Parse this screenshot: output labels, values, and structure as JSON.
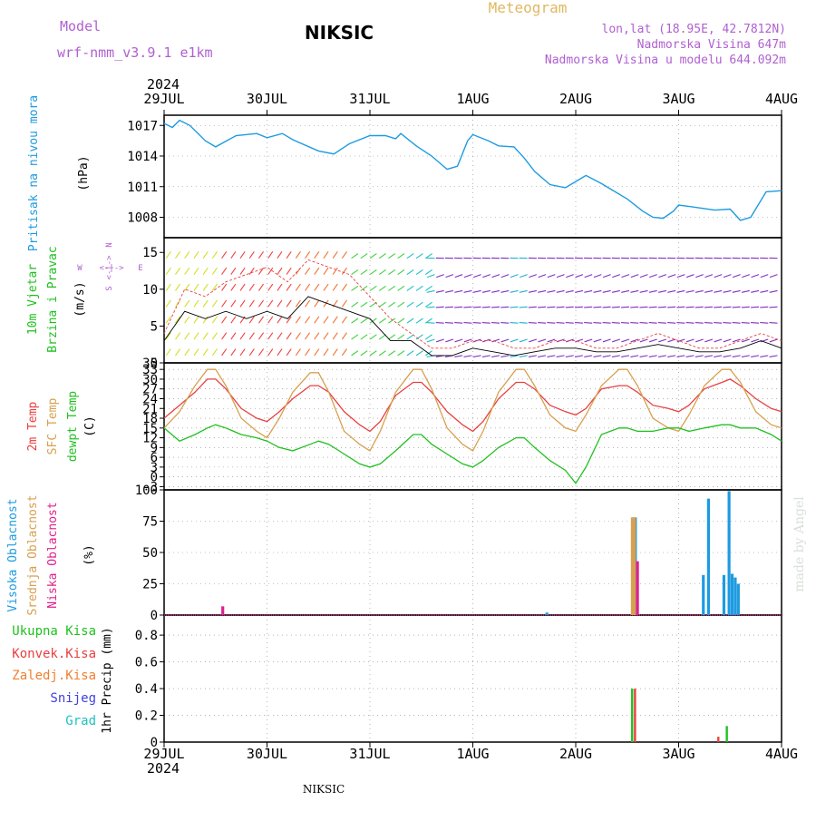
{
  "header": {
    "model_label": "Model",
    "model_name": "wrf-nmm_v3.9.1 e1km",
    "station": "NIKSIC",
    "product": "Meteogram",
    "coords": "lon,lat (18.95E, 42.7812N)",
    "elevation": "Nadmorska Visina 647m",
    "model_elevation": "Nadmorska Visina u modelu 644.092m"
  },
  "footer": {
    "station": "NIKSIC",
    "credit": "made by Angel"
  },
  "time_axis": {
    "year": "2024",
    "labels": [
      "29JUL",
      "30JUL",
      "31JUL",
      "1AUG",
      "2AUG",
      "3AUG",
      "4AUG"
    ]
  },
  "colors": {
    "pressure": "#1e9be0",
    "temp2m": "#e84040",
    "sfc_temp": "#d8a050",
    "dewpt": "#20c020",
    "cloud_high": "#1e9be0",
    "cloud_mid": "#d8a050",
    "cloud_low": "#e0208c",
    "rain_total": "#20c020",
    "rain_conv": "#e84040",
    "rain_frozen": "#f08030",
    "snow": "#4040e0",
    "hail": "#20c0c0"
  },
  "panel_labels": {
    "pressure": [
      "Pritisak na nivou mora",
      "(hPa)"
    ],
    "wind": [
      "10m Vjetar",
      "Brzina i Pravac",
      "(m/s)"
    ],
    "wind_compass": {
      "n": "N",
      "s": "S",
      "e": "E",
      "w": "W",
      "arrows": "<-|->"
    },
    "temp": [
      "2m Temp",
      "SFC Temp",
      "dewpt Temp",
      "(C)"
    ],
    "cloud": [
      "Visoka Oblacnost",
      "Srednja Oblacnost",
      "Niska Oblacnost",
      "(%)"
    ],
    "precip_side": "1hr Precip (mm)",
    "precip_legend": [
      "Ukupna Kisa",
      "Konvek.Kisa",
      "Zaledj.Kisa",
      "Snijeg",
      "Grad"
    ]
  },
  "chart_data": [
    {
      "type": "line",
      "name": "pressure",
      "xlabel": "",
      "ylabel": "(hPa)",
      "yticks": [
        "1008",
        "1011",
        "1014",
        "1017"
      ],
      "ylim": [
        1006,
        1018
      ],
      "x_days": [
        0,
        0.08,
        0.15,
        0.25,
        0.4,
        0.5,
        0.7,
        0.9,
        1.0,
        1.15,
        1.25,
        1.5,
        1.65,
        1.8,
        2.0,
        2.15,
        2.25,
        2.3,
        2.45,
        2.6,
        2.75,
        2.85,
        2.95,
        3.0,
        3.15,
        3.25,
        3.4,
        3.5,
        3.6,
        3.75,
        3.9,
        4.0,
        4.1,
        4.25,
        4.35,
        4.5,
        4.65,
        4.75,
        4.85,
        4.95,
        5.0,
        5.15,
        5.35,
        5.5,
        5.6,
        5.7,
        5.85,
        6.0
      ],
      "values": [
        1017.2,
        1016.8,
        1017.5,
        1017.0,
        1015.5,
        1014.9,
        1016.0,
        1016.2,
        1015.8,
        1016.2,
        1015.6,
        1014.5,
        1014.2,
        1015.2,
        1016.0,
        1016.0,
        1015.7,
        1016.2,
        1015.0,
        1014.0,
        1012.7,
        1013.0,
        1015.5,
        1016.1,
        1015.5,
        1015.0,
        1014.9,
        1013.8,
        1012.5,
        1011.2,
        1010.9,
        1011.5,
        1012.1,
        1011.3,
        1010.7,
        1009.8,
        1008.6,
        1008.0,
        1007.9,
        1008.6,
        1009.2,
        1009.0,
        1008.7,
        1008.8,
        1007.7,
        1008.0,
        1010.5,
        1010.6
      ]
    },
    {
      "type": "line",
      "name": "wind",
      "ylabel": "(m/s)",
      "yticks": [
        "0",
        "5",
        "10",
        "15"
      ],
      "ylim": [
        0,
        17
      ],
      "x_days": [
        0,
        0.2,
        0.4,
        0.6,
        0.8,
        1.0,
        1.2,
        1.4,
        1.6,
        1.8,
        2.0,
        2.2,
        2.4,
        2.6,
        2.8,
        3.0,
        3.2,
        3.4,
        3.6,
        3.8,
        4.0,
        4.2,
        4.4,
        4.6,
        4.8,
        5.0,
        5.2,
        5.4,
        5.6,
        5.8,
        6.0
      ],
      "values": [
        3,
        7,
        6,
        7,
        6,
        7,
        6,
        9,
        8,
        7,
        6,
        3,
        3,
        1,
        1,
        2,
        1.5,
        1,
        1.5,
        2,
        2,
        1.5,
        1.5,
        2,
        2.5,
        2,
        1.5,
        1.5,
        2,
        3,
        2
      ],
      "gusts": [
        4,
        10,
        9,
        11,
        12,
        13,
        11,
        14,
        13,
        12,
        9,
        6,
        4,
        2,
        2,
        3,
        3,
        2,
        2,
        3,
        3,
        2,
        2,
        3,
        4,
        3,
        2,
        2,
        3,
        4,
        3
      ]
    },
    {
      "type": "line",
      "name": "temperature",
      "ylabel": "(C)",
      "yticks": [
        "-3",
        "0",
        "3",
        "6",
        "9",
        "12",
        "15",
        "18",
        "21",
        "24",
        "27",
        "30",
        "33",
        "35"
      ],
      "ylim": [
        -4,
        35
      ],
      "x_days": [
        0,
        0.15,
        0.3,
        0.42,
        0.5,
        0.6,
        0.75,
        0.9,
        1.0,
        1.12,
        1.25,
        1.42,
        1.5,
        1.6,
        1.75,
        1.9,
        2.0,
        2.1,
        2.25,
        2.42,
        2.5,
        2.6,
        2.75,
        2.9,
        3.0,
        3.1,
        3.25,
        3.42,
        3.5,
        3.6,
        3.75,
        3.9,
        4.0,
        4.1,
        4.25,
        4.42,
        4.5,
        4.6,
        4.75,
        4.9,
        5.0,
        5.1,
        5.25,
        5.42,
        5.5,
        5.6,
        5.75,
        5.9,
        6.0
      ],
      "series": [
        {
          "name": "2m Temp",
          "values": [
            18,
            22,
            26,
            30,
            30,
            27,
            21,
            18,
            17,
            20,
            24,
            28,
            28,
            26,
            20,
            16,
            14,
            17,
            25,
            29,
            29,
            26,
            20,
            16,
            14,
            17,
            24,
            29,
            29,
            27,
            22,
            20,
            19,
            21,
            27,
            28,
            28,
            26,
            22,
            21,
            20,
            22,
            27,
            29,
            30,
            28,
            24,
            21,
            20
          ]
        },
        {
          "name": "SFC Temp",
          "values": [
            15,
            20,
            28,
            33,
            33,
            28,
            18,
            14,
            12,
            18,
            26,
            32,
            32,
            26,
            14,
            10,
            8,
            14,
            26,
            33,
            33,
            27,
            15,
            10,
            8,
            14,
            26,
            33,
            33,
            28,
            19,
            15,
            14,
            19,
            28,
            33,
            33,
            28,
            18,
            15,
            14,
            19,
            28,
            33,
            33,
            29,
            20,
            16,
            15
          ]
        },
        {
          "name": "dewpt Temp",
          "values": [
            15,
            11,
            13,
            15,
            16,
            15,
            13,
            12,
            11,
            9,
            8,
            10,
            11,
            10,
            7,
            4,
            3,
            4,
            8,
            13,
            13,
            10,
            7,
            4,
            3,
            5,
            9,
            12,
            12,
            9,
            5,
            2,
            -2,
            3,
            13,
            15,
            15,
            14,
            14,
            15,
            15,
            14,
            15,
            16,
            16,
            15,
            15,
            13,
            11
          ]
        }
      ]
    },
    {
      "type": "bar",
      "name": "cloud_cover",
      "ylabel": "(%)",
      "yticks": [
        "0",
        "25",
        "50",
        "75",
        "100"
      ],
      "ylim": [
        0,
        100
      ],
      "series": [
        {
          "name": "Visoka Oblacnost",
          "x_days": [
            3.72,
            4.56,
            4.58,
            5.24,
            5.29,
            5.44,
            5.49,
            5.52,
            5.55,
            5.58
          ],
          "values": [
            2,
            78,
            78,
            32,
            93,
            32,
            99,
            33,
            30,
            25
          ]
        },
        {
          "name": "Srednja Oblacnost",
          "x_days": [
            4.55,
            4.57
          ],
          "values": [
            78,
            78
          ]
        },
        {
          "name": "Niska Oblacnost",
          "x_days": [
            0.57,
            4.6
          ],
          "values": [
            7,
            43
          ]
        }
      ]
    },
    {
      "type": "bar",
      "name": "precipitation",
      "ylabel": "1hr Precip (mm)",
      "yticks": [
        "0",
        "0.2",
        "0.4",
        "0.6",
        "0.8"
      ],
      "ylim": [
        0,
        0.95
      ],
      "series": [
        {
          "name": "Ukupna Kisa",
          "x_days": [
            4.55,
            5.47
          ],
          "values": [
            0.4,
            0.12
          ]
        },
        {
          "name": "Konvek.Kisa",
          "x_days": [
            4.56,
            5.37
          ],
          "values": [
            0.4,
            0.04
          ]
        }
      ]
    }
  ]
}
